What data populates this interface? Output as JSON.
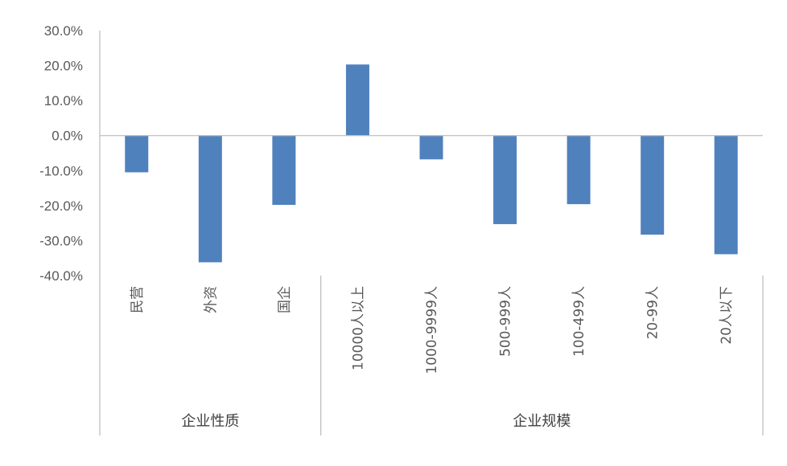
{
  "chart_data": {
    "type": "bar",
    "title": "",
    "xlabel": "",
    "ylabel": "",
    "ylim": [
      -0.4,
      0.3
    ],
    "yticks": [
      "30.0%",
      "20.0%",
      "10.0%",
      "0.0%",
      "-10.0%",
      "-20.0%",
      "-30.0%",
      "-40.0%"
    ],
    "ytick_values": [
      0.3,
      0.2,
      0.1,
      0.0,
      -0.1,
      -0.2,
      -0.3,
      -0.4
    ],
    "categories": [
      "民营",
      "外资",
      "国企",
      "10000人以上",
      "1000-9999人",
      "500-999人",
      "100-499人",
      "20-99人",
      "20人以下"
    ],
    "values": [
      -0.105,
      -0.362,
      -0.198,
      0.203,
      -0.068,
      -0.253,
      -0.196,
      -0.283,
      -0.339
    ],
    "groups": [
      {
        "label": "企业性质",
        "count": 3
      },
      {
        "label": "企业规模",
        "count": 6
      }
    ],
    "bar_color": "#4f81bd",
    "grid": false,
    "legend": "none"
  }
}
